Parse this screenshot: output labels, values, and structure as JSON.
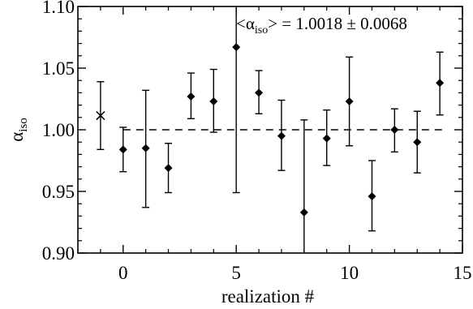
{
  "chart_data": {
    "type": "scatter",
    "xlabel": "realization #",
    "ylabel": {
      "base": "α",
      "sub": "iso"
    },
    "xlim": [
      -2,
      15
    ],
    "ylim": [
      0.9,
      1.1
    ],
    "xticks": [
      0,
      5,
      10,
      15
    ],
    "yticks": [
      0.9,
      0.95,
      1.0,
      1.05,
      1.1
    ],
    "ytick_labels": [
      "0.90",
      "0.95",
      "1.00",
      "1.05",
      "1.10"
    ],
    "reference_line": {
      "y": 1.0,
      "style": "dashed"
    },
    "annotation": {
      "prefix": "<α",
      "sub": "iso",
      "suffix": "> = 1.0018 ± 0.0068"
    },
    "marker_color": "#000000",
    "mean_point": {
      "x": -1,
      "y": 1.0115,
      "ylow": 0.984,
      "yhigh": 1.039,
      "marker": "cross"
    },
    "points": [
      {
        "x": 0,
        "y": 0.984,
        "ylow": 0.966,
        "yhigh": 1.002
      },
      {
        "x": 1,
        "y": 0.985,
        "ylow": 0.937,
        "yhigh": 1.032
      },
      {
        "x": 2,
        "y": 0.969,
        "ylow": 0.949,
        "yhigh": 0.989
      },
      {
        "x": 3,
        "y": 1.027,
        "ylow": 1.009,
        "yhigh": 1.046
      },
      {
        "x": 4,
        "y": 1.023,
        "ylow": 0.998,
        "yhigh": 1.049
      },
      {
        "x": 5,
        "y": 1.067,
        "ylow": 0.949,
        "yhigh": 1.1
      },
      {
        "x": 6,
        "y": 1.03,
        "ylow": 1.013,
        "yhigh": 1.048
      },
      {
        "x": 7,
        "y": 0.995,
        "ylow": 0.967,
        "yhigh": 1.024
      },
      {
        "x": 8,
        "y": 0.933,
        "ylow": 0.9,
        "yhigh": 1.008
      },
      {
        "x": 9,
        "y": 0.993,
        "ylow": 0.971,
        "yhigh": 1.016
      },
      {
        "x": 10,
        "y": 1.023,
        "ylow": 0.987,
        "yhigh": 1.059
      },
      {
        "x": 11,
        "y": 0.946,
        "ylow": 0.918,
        "yhigh": 0.975
      },
      {
        "x": 12,
        "y": 1.0,
        "ylow": 0.982,
        "yhigh": 1.017
      },
      {
        "x": 13,
        "y": 0.99,
        "ylow": 0.965,
        "yhigh": 1.015
      },
      {
        "x": 14,
        "y": 1.038,
        "ylow": 1.012,
        "yhigh": 1.063
      }
    ]
  }
}
